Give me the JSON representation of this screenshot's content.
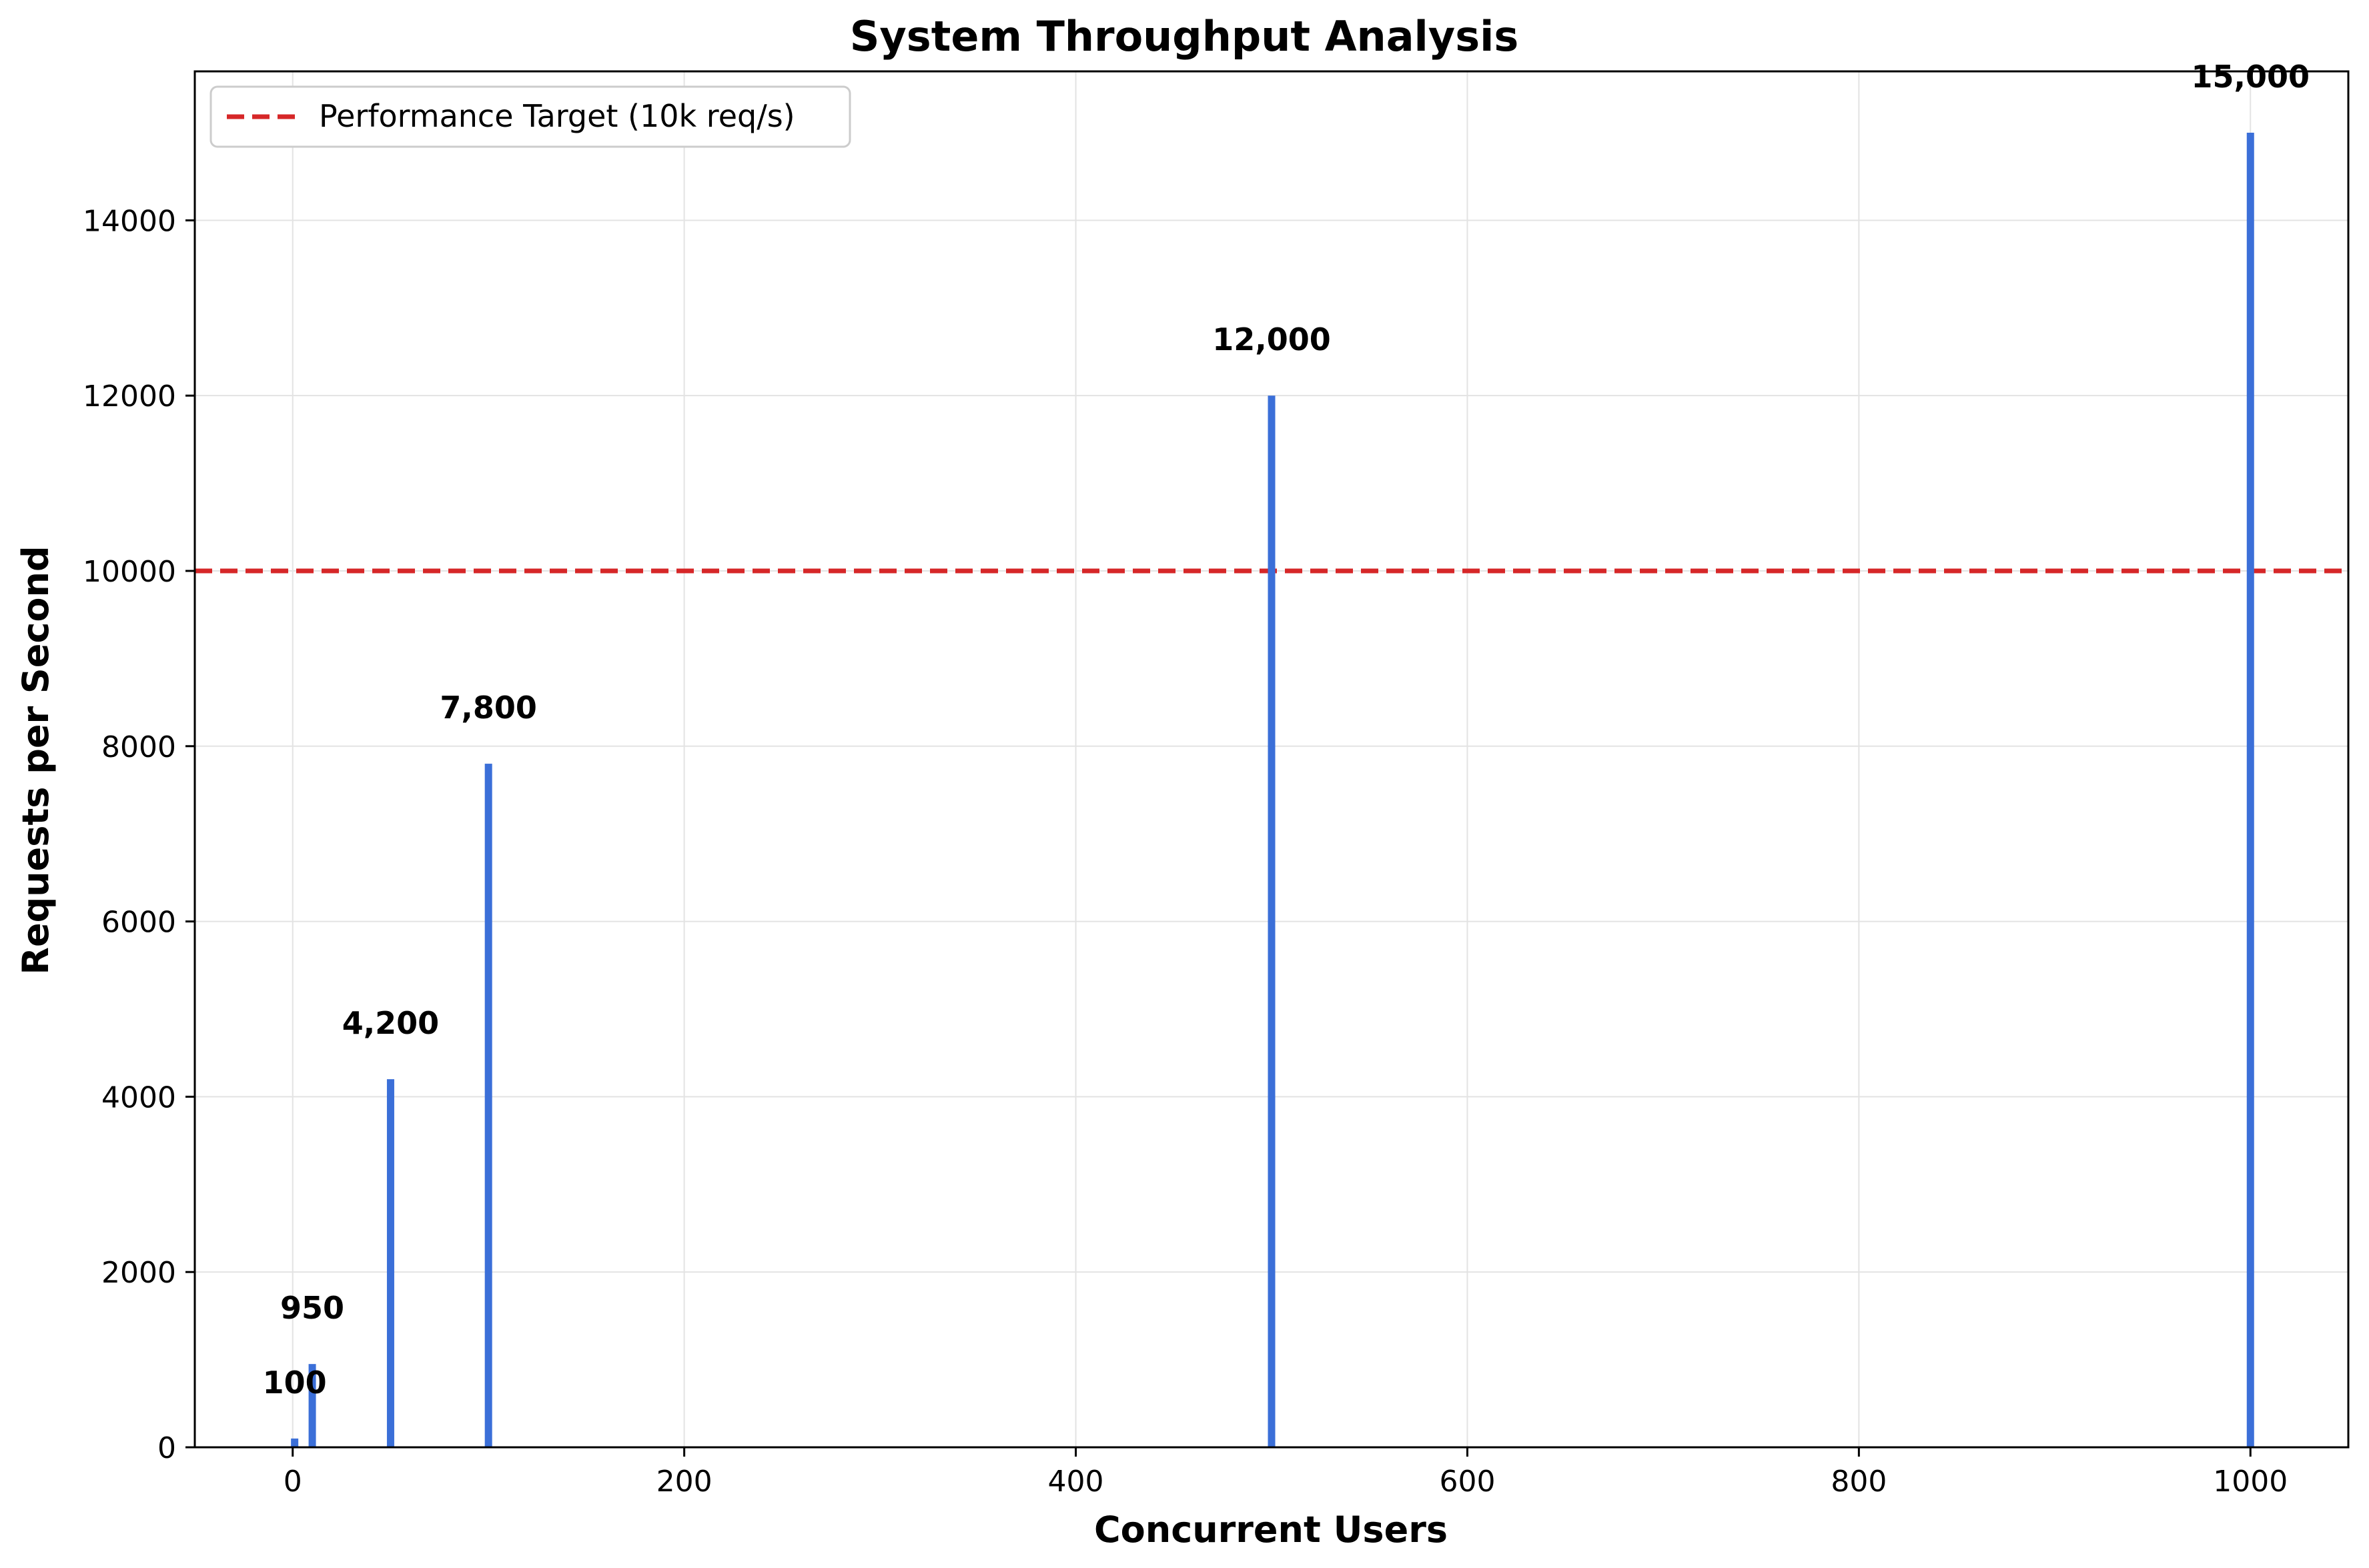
{
  "chart_data": {
    "type": "bar",
    "title": "System Throughput Analysis",
    "xlabel": "Concurrent Users",
    "ylabel": "Requests per Second",
    "x": [
      1,
      10,
      50,
      100,
      500,
      1000
    ],
    "values": [
      100,
      950,
      4200,
      7800,
      12000,
      15000
    ],
    "data_labels": [
      "100",
      "950",
      "4,200",
      "7,800",
      "12,000",
      "15,000"
    ],
    "xlim": [
      -50,
      1050
    ],
    "ylim": [
      0,
      15700
    ],
    "xticks": [
      0,
      200,
      400,
      600,
      800,
      1000
    ],
    "xtick_labels": [
      "0",
      "200",
      "400",
      "600",
      "800",
      "1000"
    ],
    "yticks": [
      0,
      2000,
      4000,
      6000,
      8000,
      10000,
      12000,
      14000
    ],
    "ytick_labels": [
      "0",
      "2000",
      "4000",
      "6000",
      "8000",
      "10000",
      "12000",
      "14000"
    ],
    "reference_line": {
      "y": 10000,
      "label": "Performance Target (10k req/s)",
      "style": "dashed"
    },
    "legend_position": "top-left",
    "grid": true,
    "colors": {
      "bar": "#3b6fd8",
      "target_line": "#d62728",
      "grid": "#e3e3e3"
    }
  }
}
